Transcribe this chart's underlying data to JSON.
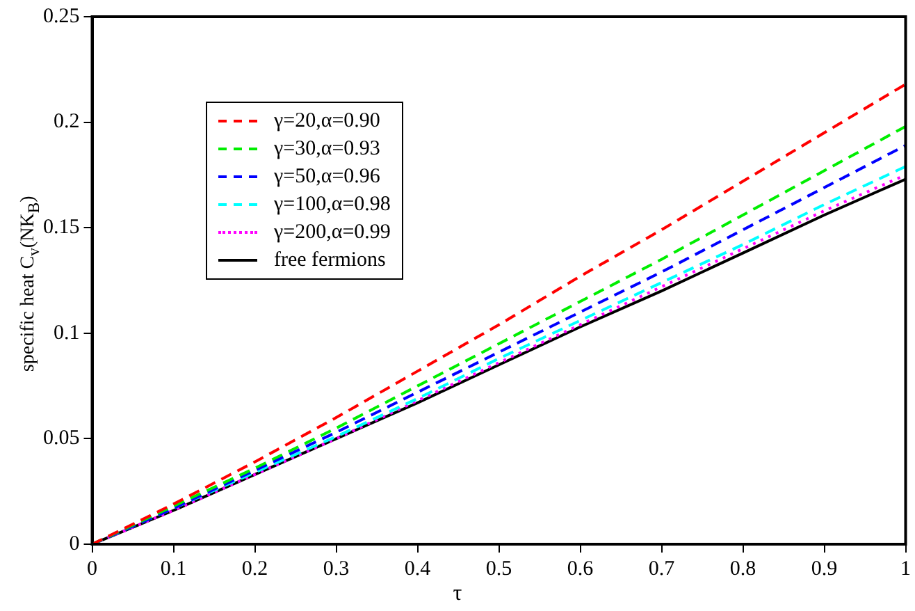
{
  "chart_data": {
    "type": "line",
    "xlabel": "τ",
    "ylabel": "specific heat C$_{v}$(NK$_{B}$)",
    "x": [
      0,
      0.1,
      0.2,
      0.3,
      0.4,
      0.5,
      0.6,
      0.7,
      0.8,
      0.9,
      1
    ],
    "xlim": [
      0,
      1
    ],
    "xticks": [
      0,
      0.1,
      0.2,
      0.3,
      0.4,
      0.5,
      0.6,
      0.7,
      0.8,
      0.9,
      1
    ],
    "ylim": [
      0,
      0.25
    ],
    "yticks": [
      0,
      0.05,
      0.1,
      0.15,
      0.2,
      0.25
    ],
    "grid": false,
    "legend": "top left",
    "marker": "none",
    "series": [
      {
        "name": "γ=20,α=0.90",
        "color": "#ff0000",
        "line_style": "dashed",
        "values": [
          0,
          0.019,
          0.039,
          0.06,
          0.082,
          0.104,
          0.127,
          0.149,
          0.172,
          0.195,
          0.218
        ]
      },
      {
        "name": "γ=30,α=0.93",
        "color": "#00ee00",
        "line_style": "dashed",
        "values": [
          0,
          0.018,
          0.036,
          0.055,
          0.075,
          0.095,
          0.115,
          0.135,
          0.156,
          0.177,
          0.198
        ]
      },
      {
        "name": "γ=50,α=0.96",
        "color": "#0000ff",
        "line_style": "dashed",
        "values": [
          0,
          0.017,
          0.035,
          0.053,
          0.072,
          0.091,
          0.11,
          0.129,
          0.149,
          0.169,
          0.189
        ]
      },
      {
        "name": "γ=100,α=0.98",
        "color": "#00ffff",
        "line_style": "dashed",
        "values": [
          0,
          0.017,
          0.034,
          0.051,
          0.069,
          0.088,
          0.106,
          0.124,
          0.142,
          0.161,
          0.179
        ]
      },
      {
        "name": "γ=200,α=0.99",
        "color": "#ff00ff",
        "line_style": "dotted",
        "values": [
          0,
          0.016,
          0.033,
          0.05,
          0.068,
          0.086,
          0.104,
          0.122,
          0.14,
          0.158,
          0.175
        ]
      },
      {
        "name": "free fermions",
        "color": "#000000",
        "line_style": "solid",
        "values": [
          0,
          0.016,
          0.033,
          0.05,
          0.067,
          0.085,
          0.103,
          0.12,
          0.138,
          0.156,
          0.173
        ]
      }
    ]
  }
}
